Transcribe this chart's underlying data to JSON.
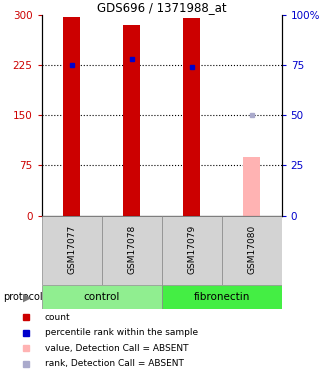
{
  "title": "GDS696 / 1371988_at",
  "samples": [
    "GSM17077",
    "GSM17078",
    "GSM17079",
    "GSM17080"
  ],
  "bar_values": [
    297,
    285,
    295,
    88
  ],
  "bar_colors": [
    "#cc0000",
    "#cc0000",
    "#cc0000",
    "#ffb3b3"
  ],
  "rank_values": [
    75,
    78,
    74,
    50
  ],
  "rank_colors": [
    "#0000cc",
    "#0000cc",
    "#0000cc",
    "#aaaacc"
  ],
  "groups": [
    {
      "label": "control",
      "start": 0,
      "end": 2,
      "color": "#90ee90"
    },
    {
      "label": "fibronectin",
      "start": 2,
      "end": 4,
      "color": "#44ee44"
    }
  ],
  "protocol_label": "protocol",
  "ylim_left": [
    0,
    300
  ],
  "ylim_right": [
    0,
    100
  ],
  "yticks_left": [
    0,
    75,
    150,
    225,
    300
  ],
  "yticks_right": [
    0,
    25,
    50,
    75,
    100
  ],
  "ytick_right_labels": [
    "0",
    "25",
    "50",
    "75",
    "100%"
  ],
  "left_color": "#cc0000",
  "right_color": "#0000cc",
  "hgrid_values": [
    75,
    150,
    225
  ],
  "legend_items": [
    {
      "label": "count",
      "color": "#cc0000"
    },
    {
      "label": "percentile rank within the sample",
      "color": "#0000cc"
    },
    {
      "label": "value, Detection Call = ABSENT",
      "color": "#ffb3b3"
    },
    {
      "label": "rank, Detection Call = ABSENT",
      "color": "#aaaacc"
    }
  ]
}
